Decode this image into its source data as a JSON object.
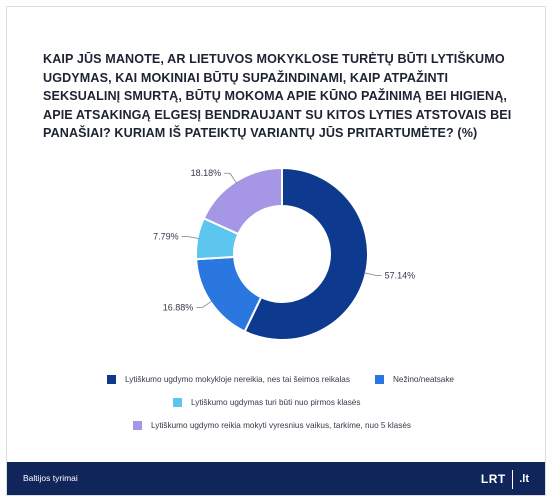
{
  "title": "KAIP JŪS MANOTE, AR LIETUVOS MOKYKLOSE TURĖTŲ BŪTI LYTIŠKUMO UGDYMAS, KAI MOKINIAI BŪTŲ SUPAŽINDINAMI, KAIP ATPAŽINTI SEKSUALINĮ SMURTĄ, BŪTŲ MOKOMA APIE KŪNO PAŽINIMĄ BEI HIGIENĄ, APIE ATSAKINGĄ ELGESĮ BENDRAUJANT SU KITOS LYTIES ATSTOVAIS BEI PANAŠIAI? KURIAM IŠ PATEIKTŲ VARIANTŲ JŪS PRITARTUMĖTE? (%)",
  "chart_data": {
    "type": "pie",
    "variant": "donut",
    "start": "12 o'clock, clockwise",
    "slices": [
      {
        "label": "Lytiškumo ugdymo mokykloje nereikia, nes tai šeimos reikalas",
        "value": 57.14,
        "value_label": "57.14%",
        "color": "#0d3a8f"
      },
      {
        "label": "Nežino/neatsake",
        "value": 16.88,
        "value_label": "16.88%",
        "color": "#2b77e0"
      },
      {
        "label": "Lytiškumo ugdymas turi būti nuo pirmos klasės",
        "value": 7.79,
        "value_label": "7.79%",
        "color": "#5cc6ee"
      },
      {
        "label": "Lytiškumo ugdymo reikia mokyti vyresnius vaikus, tarkime, nuo 5 klasės",
        "value": 18.18,
        "value_label": "18.18%",
        "color": "#a696e6"
      }
    ],
    "legend_placement": "bottom"
  },
  "footer": {
    "source": "Baltijos tyrimai",
    "logo_main": "LRT",
    "logo_tld": ".lt"
  }
}
